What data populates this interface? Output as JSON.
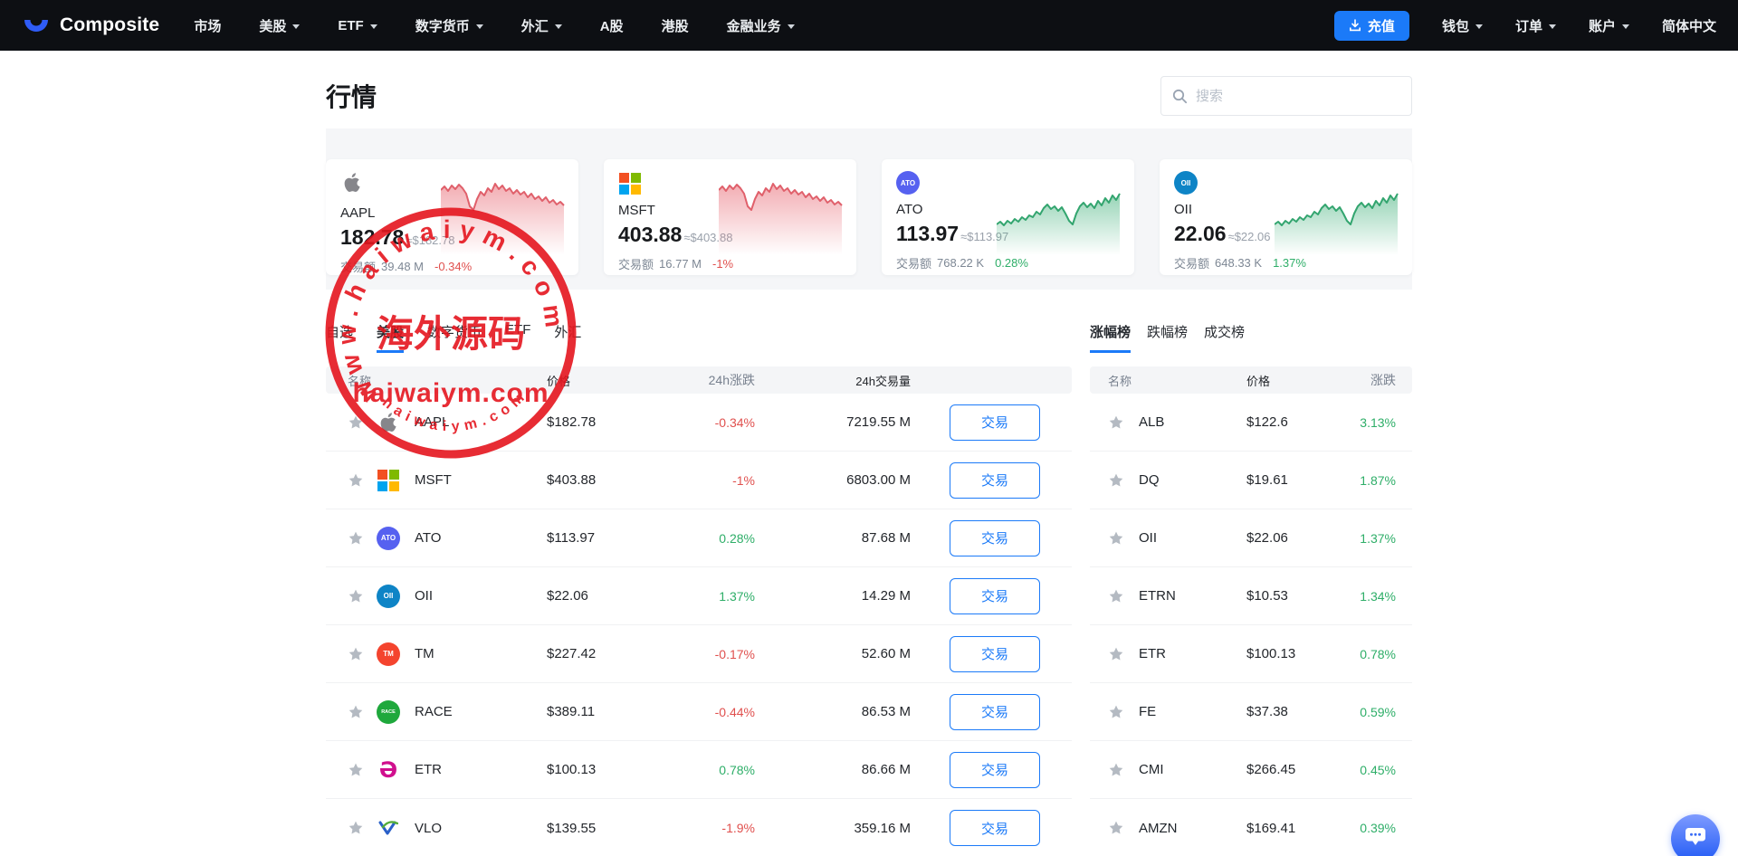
{
  "navbar": {
    "brand": "Composite",
    "items": [
      {
        "label": "市场",
        "dropdown": false
      },
      {
        "label": "美股",
        "dropdown": true
      },
      {
        "label": "ETF",
        "dropdown": true
      },
      {
        "label": "数字货币",
        "dropdown": true
      },
      {
        "label": "外汇",
        "dropdown": true
      },
      {
        "label": "A股",
        "dropdown": false
      },
      {
        "label": "港股",
        "dropdown": false
      },
      {
        "label": "金融业务",
        "dropdown": true
      }
    ],
    "deposit_label": "充值",
    "right_items": [
      {
        "label": "钱包",
        "dropdown": true
      },
      {
        "label": "订单",
        "dropdown": true
      },
      {
        "label": "账户",
        "dropdown": true
      },
      {
        "label": "简体中文",
        "dropdown": false
      }
    ]
  },
  "page": {
    "title": "行情",
    "search_placeholder": "搜索"
  },
  "cards": [
    {
      "symbol": "AAPL",
      "price": "182.78",
      "approx": "≈$182.78",
      "volume_label": "交易额",
      "volume": "39.48 M",
      "change": "-0.34%",
      "trend": "down"
    },
    {
      "symbol": "MSFT",
      "price": "403.88",
      "approx": "≈$403.88",
      "volume_label": "交易额",
      "volume": "16.77 M",
      "change": "-1%",
      "trend": "down"
    },
    {
      "symbol": "ATO",
      "price": "113.97",
      "approx": "≈$113.97",
      "volume_label": "交易额",
      "volume": "768.22 K",
      "change": "0.28%",
      "trend": "up"
    },
    {
      "symbol": "OII",
      "price": "22.06",
      "approx": "≈$22.06",
      "volume_label": "交易额",
      "volume": "648.33 K",
      "change": "1.37%",
      "trend": "up"
    }
  ],
  "market_table": {
    "tabs": [
      "自选",
      "美股",
      "数字货币",
      "ETF",
      "外汇"
    ],
    "active_tab": "美股",
    "headers": [
      "名称",
      "价格",
      "24h涨跌",
      "24h交易量"
    ],
    "trade_label": "交易",
    "rows": [
      {
        "symbol": "AAPL",
        "price": "$182.78",
        "change": "-0.34%",
        "dir": "down",
        "volume": "7219.55 M"
      },
      {
        "symbol": "MSFT",
        "price": "$403.88",
        "change": "-1%",
        "dir": "down",
        "volume": "6803.00 M"
      },
      {
        "symbol": "ATO",
        "price": "$113.97",
        "change": "0.28%",
        "dir": "up",
        "volume": "87.68 M"
      },
      {
        "symbol": "OII",
        "price": "$22.06",
        "change": "1.37%",
        "dir": "up",
        "volume": "14.29 M"
      },
      {
        "symbol": "TM",
        "price": "$227.42",
        "change": "-0.17%",
        "dir": "down",
        "volume": "52.60 M"
      },
      {
        "symbol": "RACE",
        "price": "$389.11",
        "change": "-0.44%",
        "dir": "down",
        "volume": "86.53 M"
      },
      {
        "symbol": "ETR",
        "price": "$100.13",
        "change": "0.78%",
        "dir": "up",
        "volume": "86.66 M"
      },
      {
        "symbol": "VLO",
        "price": "$139.55",
        "change": "-1.9%",
        "dir": "down",
        "volume": "359.16 M"
      }
    ]
  },
  "rank_panel": {
    "tabs": [
      "涨幅榜",
      "跌幅榜",
      "成交榜"
    ],
    "active_tab": "涨幅榜",
    "headers": [
      "名称",
      "价格",
      "涨跌"
    ],
    "rows": [
      {
        "symbol": "ALB",
        "price": "$122.6",
        "change": "3.13%",
        "dir": "up"
      },
      {
        "symbol": "DQ",
        "price": "$19.61",
        "change": "1.87%",
        "dir": "up"
      },
      {
        "symbol": "OII",
        "price": "$22.06",
        "change": "1.37%",
        "dir": "up"
      },
      {
        "symbol": "ETRN",
        "price": "$10.53",
        "change": "1.34%",
        "dir": "up"
      },
      {
        "symbol": "ETR",
        "price": "$100.13",
        "change": "0.78%",
        "dir": "up"
      },
      {
        "symbol": "FE",
        "price": "$37.38",
        "change": "0.59%",
        "dir": "up"
      },
      {
        "symbol": "CMI",
        "price": "$266.45",
        "change": "0.45%",
        "dir": "up"
      },
      {
        "symbol": "AMZN",
        "price": "$169.41",
        "change": "0.39%",
        "dir": "up"
      }
    ]
  },
  "logos": {
    "AAPL": {
      "type": "apple",
      "color": "#86868b"
    },
    "MSFT": {
      "type": "squares",
      "colors": [
        "#f25022",
        "#7fba00",
        "#00a4ef",
        "#ffb900"
      ]
    },
    "ATO": {
      "type": "badge",
      "bg": "#5661f0",
      "label": "ATO"
    },
    "OII": {
      "type": "badge",
      "bg": "#0e84c6",
      "label": "OII"
    },
    "TM": {
      "type": "badge",
      "bg": "#f4442e",
      "label": "TM"
    },
    "RACE": {
      "type": "badge",
      "bg": "#1fa83c",
      "label": "RACE"
    },
    "ETR": {
      "type": "glyph",
      "color": "#d0108e",
      "char": "Ə"
    },
    "VLO": {
      "type": "vlo",
      "colors": [
        "#2a60c8",
        "#54ac3a"
      ]
    }
  },
  "watermark": {
    "arc_top": "www.haiwaiym.com",
    "center_cn": "海外源码",
    "center_en": "haiwaiym.com",
    "arc_bottom": "haiwaiym.com"
  },
  "icons": {
    "logo": "blue-crescent",
    "search": "magnifier",
    "deposit": "download-tray",
    "favorite": "star",
    "chat": "chat-bubble-dots",
    "dropdown": "caret-down"
  },
  "colors": {
    "accent": "#1b7af8",
    "up": "#2eae68",
    "down": "#e0504e",
    "navbar": "#0d0f13",
    "stamp": "#e5161f",
    "band": "#f5f6f8"
  }
}
